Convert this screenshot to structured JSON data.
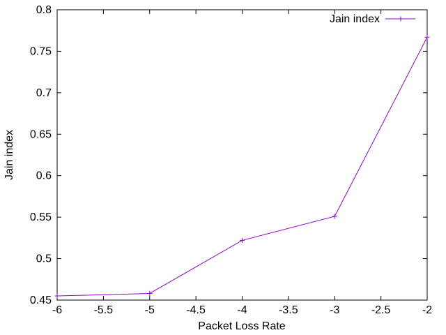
{
  "chart_data": {
    "type": "line",
    "xlabel": "Packet Loss Rate",
    "ylabel": "Jain index",
    "xlim": [
      -6,
      -2
    ],
    "ylim": [
      0.45,
      0.8
    ],
    "xticks": [
      "-6",
      "-5.5",
      "-5",
      "-4.5",
      "-4",
      "-3.5",
      "-3",
      "-2.5",
      "-2"
    ],
    "xtick_values": [
      -6,
      -5.5,
      -5,
      -4.5,
      -4,
      -3.5,
      -3,
      -2.5,
      -2
    ],
    "yticks": [
      "0.45",
      "0.5",
      "0.55",
      "0.6",
      "0.65",
      "0.7",
      "0.75",
      "0.8"
    ],
    "ytick_values": [
      0.45,
      0.5,
      0.55,
      0.6,
      0.65,
      0.7,
      0.75,
      0.8
    ],
    "grid": false,
    "legend_position": "top-right",
    "series": [
      {
        "name": "Jain index",
        "color": "#9400d3",
        "marker": "plus",
        "x": [
          -6,
          -5,
          -4,
          -3,
          -2
        ],
        "y": [
          0.455,
          0.458,
          0.522,
          0.551,
          0.767
        ]
      }
    ]
  }
}
